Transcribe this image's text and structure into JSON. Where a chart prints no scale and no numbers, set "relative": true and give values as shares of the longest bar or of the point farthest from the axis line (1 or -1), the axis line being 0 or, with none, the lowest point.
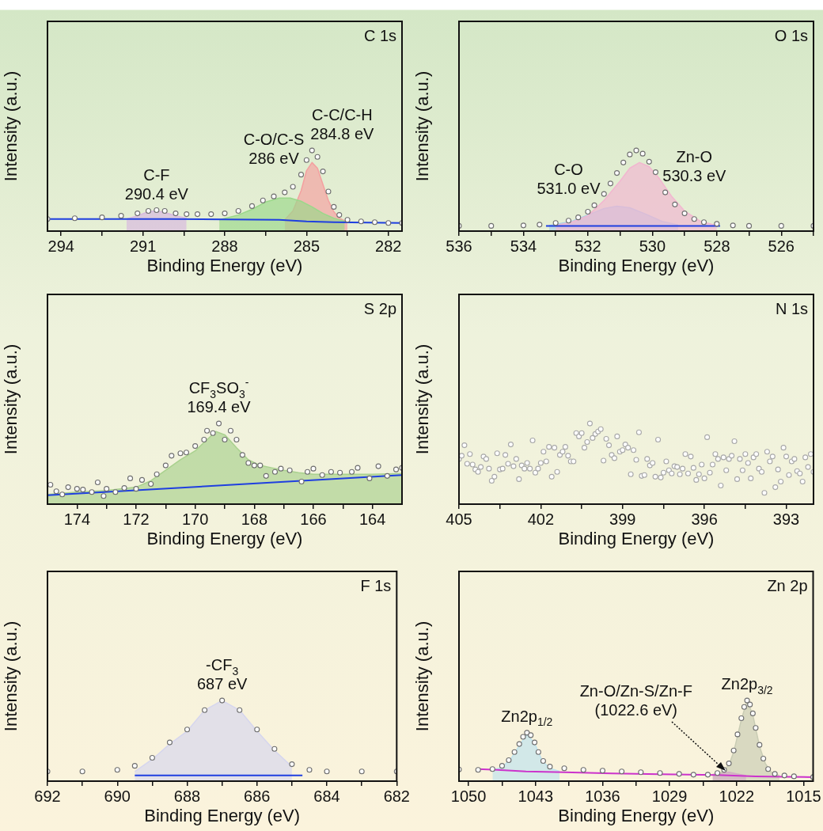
{
  "chart_data": [
    {
      "type": "scatter",
      "title": "C 1s",
      "xlabel": "Binding Energy (eV)",
      "ylabel": "Intensity (a.u.)",
      "relative": true,
      "legend": false,
      "grid": false,
      "marker": "circle",
      "xlim": [
        294.5,
        281.5
      ],
      "xticks": [
        294,
        {
          "value": 292.5,
          "label": null
        },
        291,
        {
          "value": 289.5,
          "label": null
        },
        288,
        {
          "value": 286.5,
          "label": null
        },
        285,
        {
          "value": 283.5,
          "label": null
        },
        282
      ],
      "annotations": [
        {
          "text": "C-F\n290.4 eV",
          "x": 290.5,
          "y": 0.26
        },
        {
          "text": "C-O/C-S\n286 eV",
          "x": 286.2,
          "y": 0.43
        },
        {
          "text": "C-C/C-H\n284.8 eV",
          "x": 284.8,
          "y": 1.0
        }
      ],
      "series": [
        {
          "type": "area",
          "marker": "none",
          "color": "#d8b8e0",
          "x": [
            291.6,
            291.2,
            290.8,
            290.5,
            290.2,
            289.8,
            289.4
          ],
          "values": [
            0.15,
            0.19,
            0.24,
            0.25,
            0.23,
            0.19,
            0.16
          ]
        },
        {
          "type": "area",
          "marker": "none",
          "color": "#9ad88a",
          "x": [
            288.2,
            287.5,
            287,
            286.5,
            286,
            285.6,
            285.2,
            284.8,
            284.4,
            284,
            283.6
          ],
          "values": [
            0.14,
            0.2,
            0.27,
            0.36,
            0.41,
            0.41,
            0.37,
            0.3,
            0.22,
            0.16,
            0.12
          ]
        },
        {
          "type": "area",
          "marker": "none",
          "color": "#f4a0a0",
          "x": [
            285.8,
            285.5,
            285.2,
            285,
            284.8,
            284.6,
            284.4,
            284.2,
            284,
            283.8,
            283.5
          ],
          "values": [
            0.14,
            0.25,
            0.5,
            0.75,
            0.85,
            0.78,
            0.58,
            0.38,
            0.24,
            0.16,
            0.11
          ]
        },
        {
          "type": "line",
          "marker": "none",
          "color": "#1f3fe0",
          "x": [
            294.5,
            290,
            286,
            285,
            284,
            281.5
          ],
          "values": [
            0.15,
            0.15,
            0.14,
            0.12,
            0.11,
            0.1
          ]
        },
        {
          "type": "scatter",
          "color": "#6e6e6e",
          "x": [
            294.5,
            293.5,
            292.5,
            291.8,
            291.2,
            290.8,
            290.5,
            290.2,
            289.8,
            289.4,
            289,
            288.5,
            288,
            287.5,
            287,
            286.6,
            286.2,
            285.8,
            285.5,
            285.2,
            285,
            284.8,
            284.6,
            284.4,
            284.2,
            284,
            283.8,
            283.5,
            283,
            282.5,
            282,
            281.5
          ],
          "values": [
            0.15,
            0.16,
            0.17,
            0.19,
            0.22,
            0.25,
            0.26,
            0.25,
            0.22,
            0.21,
            0.21,
            0.21,
            0.22,
            0.25,
            0.31,
            0.38,
            0.43,
            0.48,
            0.55,
            0.7,
            0.88,
            1.0,
            0.92,
            0.74,
            0.49,
            0.3,
            0.2,
            0.14,
            0.12,
            0.11,
            0.1,
            0.1
          ]
        }
      ]
    },
    {
      "type": "scatter",
      "title": "O 1s",
      "xlabel": "Binding Energy (eV)",
      "ylabel": "Intensity (a.u.)",
      "relative": true,
      "legend": false,
      "grid": false,
      "marker": "circle",
      "xlim": [
        536,
        525
      ],
      "xticks": [
        536,
        {
          "value": 535,
          "label": null
        },
        534,
        {
          "value": 533,
          "label": null
        },
        532,
        {
          "value": 531,
          "label": null
        },
        530,
        {
          "value": 529,
          "label": null
        },
        528,
        {
          "value": 527,
          "label": null
        },
        526,
        {
          "value": 525,
          "label": null
        }
      ],
      "annotations": [
        {
          "text": "C-O\n531.0 eV",
          "x": 532.6,
          "y": 0.13
        },
        {
          "text": "Zn-O\n530.3 eV",
          "x": 528.7,
          "y": 0.15
        }
      ],
      "series": [
        {
          "type": "area",
          "marker": "none",
          "color": "#f2b6d0",
          "x": [
            533,
            532.5,
            532,
            531.5,
            531,
            530.7,
            530.4,
            530.1,
            529.8,
            529.4,
            529,
            528.5,
            528
          ],
          "values": [
            0.07,
            0.11,
            0.19,
            0.38,
            0.62,
            0.78,
            0.85,
            0.8,
            0.66,
            0.43,
            0.25,
            0.12,
            0.07
          ]
        },
        {
          "type": "area",
          "marker": "none",
          "color": "#a8cde8",
          "x": [
            533.2,
            532.5,
            532,
            531.5,
            531.1,
            530.7,
            530.2,
            529.7,
            529.2
          ],
          "values": [
            0.07,
            0.12,
            0.2,
            0.28,
            0.31,
            0.29,
            0.21,
            0.12,
            0.075
          ]
        },
        {
          "type": "line",
          "marker": "none",
          "color": "#1f3fe0",
          "x": [
            533.3,
            527.9
          ],
          "values": [
            0.065,
            0.065
          ]
        },
        {
          "type": "scatter",
          "color": "#6e6e6e",
          "x": [
            536,
            535,
            534,
            533.5,
            533,
            532.6,
            532.3,
            532,
            531.8,
            531.5,
            531.3,
            531.1,
            530.9,
            530.7,
            530.5,
            530.3,
            530.1,
            529.9,
            529.6,
            529.3,
            529,
            528.7,
            528.4,
            528,
            527.5,
            527,
            526,
            525
          ],
          "values": [
            0.065,
            0.065,
            0.07,
            0.08,
            0.1,
            0.13,
            0.17,
            0.24,
            0.32,
            0.46,
            0.59,
            0.72,
            0.85,
            0.95,
            1.0,
            0.96,
            0.86,
            0.73,
            0.48,
            0.33,
            0.22,
            0.15,
            0.11,
            0.09,
            0.07,
            0.065,
            0.065,
            0.065
          ]
        }
      ]
    },
    {
      "type": "scatter",
      "title": "S 2p",
      "xlabel": "Binding Energy (eV)",
      "ylabel": "Intensity (a.u.)",
      "relative": true,
      "legend": false,
      "grid": false,
      "marker": "circle",
      "xlim": [
        175,
        163
      ],
      "xticks": [
        174,
        {
          "value": 173,
          "label": null
        },
        172,
        {
          "value": 171,
          "label": null
        },
        170,
        {
          "value": 169,
          "label": null
        },
        168,
        {
          "value": 167,
          "label": null
        },
        166,
        {
          "value": 165,
          "label": null
        },
        164
      ],
      "annotations": [
        {
          "text": "CF$_{3}$SO$_{3}$$^{-}$\n169.4 eV",
          "x": 169.2,
          "y": 1.0
        }
      ],
      "series": [
        {
          "type": "area",
          "marker": "none",
          "color": "#a9d18e",
          "x": [
            175,
            174,
            173,
            172,
            171.5,
            171,
            170.5,
            170,
            169.6,
            169.3,
            169,
            168.6,
            168.2,
            167.8,
            167.4,
            167,
            166.5,
            166,
            165,
            164,
            163
          ],
          "values": [
            0.12,
            0.15,
            0.17,
            0.21,
            0.29,
            0.42,
            0.55,
            0.66,
            0.8,
            0.9,
            0.86,
            0.7,
            0.55,
            0.48,
            0.45,
            0.42,
            0.39,
            0.37,
            0.37,
            0.37,
            0.38
          ]
        },
        {
          "type": "line",
          "marker": "none",
          "color": "#1f3fe0",
          "x": [
            175,
            163
          ],
          "values": [
            0.11,
            0.36
          ]
        },
        {
          "type": "scatter",
          "color": "#6e6e6e",
          "x": [
            174.9,
            174.7,
            174.5,
            174.3,
            174.0,
            173.8,
            173.5,
            173.3,
            173.1,
            173.0,
            172.7,
            172.4,
            172.2,
            172.0,
            171.8,
            171.5,
            171.3,
            171.0,
            170.8,
            170.5,
            170.3,
            170.0,
            169.7,
            169.6,
            169.4,
            169.2,
            169.0,
            168.8,
            168.6,
            168.4,
            168.2,
            168.0,
            167.8,
            167.6,
            167.3,
            167.1,
            166.8,
            166.4,
            166.2,
            166.0,
            165.7,
            165.4,
            165.1,
            164.7,
            164.5,
            164.1,
            163.8,
            163.5,
            163.2,
            163.0
          ],
          "values": [
            0.24,
            0.16,
            0.12,
            0.21,
            0.19,
            0.18,
            0.15,
            0.27,
            0.1,
            0.19,
            0.15,
            0.2,
            0.32,
            0.19,
            0.3,
            0.25,
            0.37,
            0.48,
            0.6,
            0.63,
            0.64,
            0.72,
            0.8,
            0.91,
            0.88,
            1.0,
            0.8,
            0.91,
            0.8,
            0.61,
            0.51,
            0.48,
            0.48,
            0.35,
            0.4,
            0.44,
            0.42,
            0.28,
            0.4,
            0.44,
            0.36,
            0.4,
            0.39,
            0.4,
            0.45,
            0.32,
            0.47,
            0.35,
            0.43,
            0.45
          ]
        }
      ]
    },
    {
      "type": "scatter",
      "title": "N 1s",
      "xlabel": "Binding Energy (eV)",
      "ylabel": "Intensity (a.u.)",
      "relative": true,
      "legend": false,
      "grid": false,
      "marker": "circle",
      "xlim": [
        405,
        392
      ],
      "xticks": [
        405,
        {
          "value": 403.5,
          "label": null
        },
        402,
        {
          "value": 400.5,
          "label": null
        },
        399,
        {
          "value": 397.5,
          "label": null
        },
        396,
        {
          "value": 394.5,
          "label": null
        },
        393
      ],
      "series": [
        {
          "type": "scatter",
          "color": "#a8a8a8",
          "x": [
            405,
            404.9,
            404.8,
            404.7,
            404.6,
            404.5,
            404.4,
            404.3,
            404.2,
            404.1,
            404,
            403.9,
            403.8,
            403.7,
            403.6,
            403.5,
            403.4,
            403.3,
            403.2,
            403.1,
            403,
            402.9,
            402.8,
            402.7,
            402.6,
            402.5,
            402.4,
            402.3,
            402.2,
            402.1,
            402,
            401.9,
            401.8,
            401.7,
            401.6,
            401.5,
            401.4,
            401.3,
            401.2,
            401.1,
            401,
            400.9,
            400.8,
            400.7,
            400.6,
            400.5,
            400.4,
            400.3,
            400.2,
            400.1,
            400,
            399.9,
            399.8,
            399.7,
            399.6,
            399.5,
            399.4,
            399.3,
            399.2,
            399.1,
            399,
            398.9,
            398.8,
            398.7,
            398.6,
            398.5,
            398.4,
            398.3,
            398.2,
            398.1,
            398,
            397.9,
            397.8,
            397.7,
            397.6,
            397.5,
            397.4,
            397.3,
            397.2,
            397.1,
            397,
            396.9,
            396.8,
            396.7,
            396.6,
            396.5,
            396.4,
            396.3,
            396.2,
            396.1,
            396,
            395.9,
            395.8,
            395.7,
            395.6,
            395.5,
            395.4,
            395.3,
            395.2,
            395.1,
            395,
            394.9,
            394.8,
            394.7,
            394.6,
            394.5,
            394.4,
            394.3,
            394.2,
            394.1,
            394,
            393.9,
            393.8,
            393.7,
            393.6,
            393.5,
            393.4,
            393.3,
            393.2,
            393.1,
            393,
            392.9,
            392.8,
            392.7,
            392.6,
            392.5,
            392.4,
            392.3,
            392.2,
            392.1,
            392
          ],
          "values": [
            0.56,
            0.6,
            0.73,
            0.5,
            0.62,
            0.49,
            0.43,
            0.4,
            0.46,
            0.59,
            0.56,
            0.44,
            0.29,
            0.34,
            0.63,
            0.43,
            0.44,
            0.61,
            0.5,
            0.74,
            0.47,
            0.56,
            0.31,
            0.48,
            0.44,
            0.51,
            0.44,
            0.79,
            0.39,
            0.44,
            0.51,
            0.65,
            0.53,
            0.71,
            0.34,
            0.7,
            0.4,
            0.61,
            0.65,
            0.71,
            0.6,
            0.53,
            0.53,
            0.88,
            0.84,
            0.88,
            0.7,
            0.77,
            1.0,
            0.82,
            0.87,
            0.9,
            0.93,
            0.54,
            0.81,
            0.73,
            0.61,
            0.57,
            0.84,
            0.65,
            0.67,
            0.74,
            0.7,
            0.37,
            0.67,
            0.55,
            0.89,
            0.35,
            0.36,
            0.56,
            0.48,
            0.51,
            0.34,
            0.8,
            0.33,
            0.39,
            0.53,
            0.42,
            0.38,
            0.47,
            0.46,
            0.37,
            0.44,
            0.62,
            0.38,
            0.59,
            0.45,
            0.3,
            0.37,
            0.49,
            0.32,
            0.83,
            0.39,
            0.49,
            0.62,
            0.56,
            0.23,
            0.58,
            0.42,
            0.56,
            0.6,
            0.78,
            0.31,
            0.56,
            0.42,
            0.62,
            0.51,
            0.32,
            0.58,
            0.62,
            0.44,
            0.4,
            0.14,
            0.65,
            0.53,
            0.59,
            0.21,
            0.43,
            0.28,
            0.7,
            0.59,
            0.36,
            0.53,
            0.56,
            0.41,
            0.38,
            0.28,
            0.58,
            0.46,
            0.62,
            0.4
          ]
        }
      ]
    },
    {
      "type": "scatter",
      "title": "F 1s",
      "xlabel": "Binding Energy (eV)",
      "ylabel": "Intensity (a.u.)",
      "relative": true,
      "legend": false,
      "grid": false,
      "marker": "circle",
      "xlim": [
        692,
        682
      ],
      "xticks": [
        692,
        {
          "value": 691,
          "label": null
        },
        690,
        {
          "value": 689,
          "label": null
        },
        688,
        {
          "value": 687,
          "label": null
        },
        686,
        {
          "value": 685,
          "label": null
        },
        684,
        {
          "value": 683,
          "label": null
        },
        682
      ],
      "annotations": [
        {
          "text": "-CF$_{3}$\n687 eV",
          "x": 687,
          "y": 1.0
        }
      ],
      "series": [
        {
          "type": "scatter",
          "color": "#6e6e6e",
          "x": [
            692,
            691,
            690,
            689.5,
            689,
            688.5,
            688,
            687.5,
            687,
            686.5,
            686,
            685.5,
            685,
            684.5,
            684,
            683,
            682
          ],
          "values": [
            0.12,
            0.12,
            0.14,
            0.19,
            0.29,
            0.48,
            0.64,
            0.88,
            1.0,
            0.88,
            0.64,
            0.4,
            0.21,
            0.14,
            0.12,
            0.12,
            0.12
          ]
        },
        {
          "type": "area",
          "marker": "none",
          "color": "#d6d6ee",
          "x": [
            689.5,
            689,
            688.5,
            688,
            687.5,
            687,
            686.5,
            686,
            685.5,
            685
          ],
          "values": [
            0.12,
            0.27,
            0.46,
            0.62,
            0.88,
            1.0,
            0.88,
            0.62,
            0.38,
            0.18
          ]
        },
        {
          "type": "line",
          "marker": "none",
          "color": "#1f3fe0",
          "x": [
            689.5,
            684.7
          ],
          "values": [
            0.07,
            0.07
          ]
        }
      ]
    },
    {
      "type": "scatter",
      "title": "Zn 2p",
      "xlabel": "Binding Energy (eV)",
      "ylabel": "Intensity (a.u.)",
      "relative": true,
      "legend": false,
      "grid": false,
      "marker": "circle",
      "xlim": [
        1051,
        1014
      ],
      "xticks": [
        1050,
        {
          "value": 1046.5,
          "label": null
        },
        1043,
        {
          "value": 1039.5,
          "label": null
        },
        1036,
        {
          "value": 1032.5,
          "label": null
        },
        1029,
        {
          "value": 1025.5,
          "label": null
        },
        1022,
        {
          "value": 1018.5,
          "label": null
        },
        1015
      ],
      "annotations": [
        {
          "text": "Zn2p$_{1/2}$",
          "x": 1043.9,
          "y": 0.6
        },
        {
          "text": "Zn2p$_{3/2}$",
          "x": 1020.9,
          "y": 1.0
        },
        "Zn-O/Zn-S/Zn-F\n(1022.6 eV)"
      ],
      "series": [
        {
          "type": "scatter",
          "color": "#6e6e6e",
          "x": [
            1051,
            1049,
            1047.5,
            1046.5,
            1045.8,
            1045.2,
            1044.7,
            1044.3,
            1043.9,
            1043.5,
            1043.1,
            1042.7,
            1042.2,
            1041.5,
            1040,
            1038,
            1036,
            1034,
            1032,
            1030,
            1028,
            1026.5,
            1025,
            1024,
            1023.3,
            1022.8,
            1022.3,
            1021.9,
            1021.5,
            1021.2,
            1020.9,
            1020.6,
            1020.3,
            1020,
            1019.6,
            1019.2,
            1018.7,
            1018,
            1017,
            1016,
            1014
          ],
          "values": [
            0.145,
            0.14,
            0.15,
            0.19,
            0.26,
            0.36,
            0.46,
            0.55,
            0.6,
            0.57,
            0.48,
            0.36,
            0.25,
            0.18,
            0.16,
            0.14,
            0.13,
            0.12,
            0.11,
            0.1,
            0.09,
            0.08,
            0.08,
            0.1,
            0.14,
            0.22,
            0.38,
            0.58,
            0.78,
            0.92,
            1.0,
            0.95,
            0.84,
            0.66,
            0.45,
            0.28,
            0.15,
            0.09,
            0.07,
            0.06,
            0.05
          ]
        },
        {
          "type": "area",
          "marker": "none",
          "color": "#bfe3ef",
          "x": [
            1047.5,
            1046.5,
            1045.5,
            1044.7,
            1043.9,
            1043.1,
            1042.3,
            1041.5,
            1040.5
          ],
          "values": [
            0.14,
            0.17,
            0.29,
            0.44,
            0.58,
            0.47,
            0.25,
            0.16,
            0.12
          ]
        },
        {
          "type": "area",
          "marker": "none",
          "color": "#c9ccb4",
          "x": [
            1024.5,
            1023.5,
            1022.8,
            1022.3,
            1021.9,
            1021.5,
            1020.9,
            1020.3,
            1019.6,
            1019,
            1018.3,
            1017.5
          ],
          "values": [
            0.08,
            0.11,
            0.2,
            0.36,
            0.56,
            0.76,
            1.0,
            0.82,
            0.43,
            0.22,
            0.1,
            0.07
          ]
        },
        {
          "type": "area",
          "marker": "none",
          "color": "#e070e0",
          "x": [
            1024.5,
            1023.5,
            1022.8,
            1022,
            1021
          ],
          "values": [
            0.08,
            0.1,
            0.11,
            0.09,
            0.07
          ]
        },
        {
          "type": "line",
          "marker": "none",
          "color": "#cc33cc",
          "x": [
            1049,
            1047,
            1044,
            1040,
            1035,
            1030,
            1024,
            1020,
            1017,
            1014
          ],
          "values": [
            0.15,
            0.14,
            0.12,
            0.11,
            0.095,
            0.085,
            0.075,
            0.06,
            0.055,
            0.05
          ]
        }
      ]
    }
  ]
}
